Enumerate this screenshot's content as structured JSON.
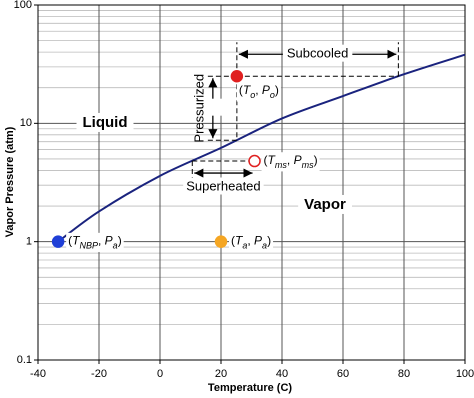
{
  "chart_data": {
    "type": "line",
    "x_label": "Temperature (C)",
    "y_label": "Vapor Pressure (atm)",
    "xlim": [
      -40,
      100
    ],
    "xticks": [
      -40,
      -20,
      0,
      20,
      40,
      60,
      80,
      100
    ],
    "ylim": [
      0.1,
      100
    ],
    "yticks": [
      0.1,
      1,
      10,
      100
    ],
    "log_y": true,
    "grid": true,
    "curve": {
      "color": "#1a237e",
      "x": [
        -33.4,
        -20,
        0,
        20,
        40,
        60,
        80,
        100
      ],
      "values": [
        1,
        1.8,
        3.6,
        6.2,
        11,
        17,
        26,
        38
      ]
    },
    "points": [
      {
        "x": -33.4,
        "y": 1,
        "color": "#1f3fd6",
        "filled": true,
        "label_parts": [
          {
            "text": "(",
            "style": "normal"
          },
          {
            "text": "T",
            "style": "italic"
          },
          {
            "text": "NBP",
            "style": "sub"
          },
          {
            "text": ", ",
            "style": "normal"
          },
          {
            "text": "P",
            "style": "italic"
          },
          {
            "text": "a",
            "style": "sub"
          },
          {
            "text": ")",
            "style": "normal"
          }
        ]
      },
      {
        "x": 20,
        "y": 1,
        "color": "#f5a623",
        "filled": true,
        "label_parts": [
          {
            "text": "(",
            "style": "normal"
          },
          {
            "text": "T",
            "style": "italic"
          },
          {
            "text": "a",
            "style": "sub"
          },
          {
            "text": ", ",
            "style": "normal"
          },
          {
            "text": "P",
            "style": "italic"
          },
          {
            "text": "a",
            "style": "sub"
          },
          {
            "text": ")",
            "style": "normal"
          }
        ]
      },
      {
        "x": 25.2,
        "y": 25,
        "color": "#e02020",
        "filled": true,
        "label_parts": [
          {
            "text": "(",
            "style": "normal"
          },
          {
            "text": "T",
            "style": "italic"
          },
          {
            "text": "o",
            "style": "sub"
          },
          {
            "text": ", ",
            "style": "normal"
          },
          {
            "text": "P",
            "style": "italic"
          },
          {
            "text": "o",
            "style": "sub"
          },
          {
            "text": ")",
            "style": "normal"
          }
        ]
      },
      {
        "x": 31,
        "y": 4.8,
        "color": "#e02020",
        "filled": false,
        "label_parts": [
          {
            "text": "(",
            "style": "normal"
          },
          {
            "text": "T",
            "style": "italic"
          },
          {
            "text": "ms",
            "style": "sub"
          },
          {
            "text": ", ",
            "style": "normal"
          },
          {
            "text": "P",
            "style": "italic"
          },
          {
            "text": "ms",
            "style": "sub"
          },
          {
            "text": ")",
            "style": "normal"
          }
        ]
      }
    ],
    "regions": {
      "liquid": "Liquid",
      "vapor": "Vapor"
    },
    "notes": {
      "subcooled": "Subcooled",
      "pressurized": "Pressurized",
      "superheated": "Superheated"
    }
  }
}
